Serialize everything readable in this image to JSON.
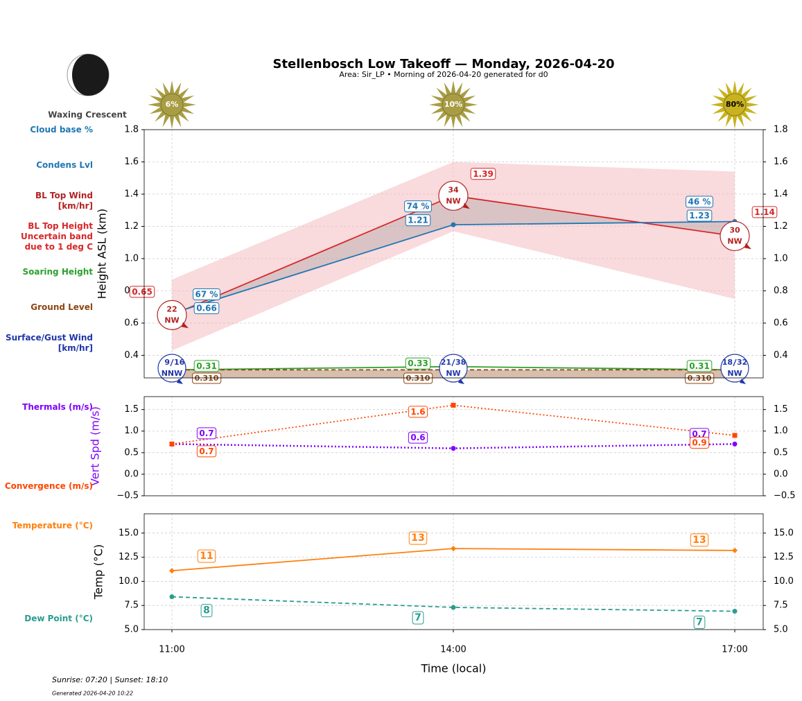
{
  "chart_data": [
    {
      "type": "line",
      "title": "Stellenbosch Low Takeoff — Monday, 2026-04-20",
      "subtitle": "Area: Sir_LP • Morning of 2026-04-20 generated for d0",
      "ylabel": "Height ASL (km)",
      "categories": [
        "11:00",
        "14:00",
        "17:00"
      ],
      "ylim": [
        0.26,
        1.8
      ],
      "yticks": [
        0.4,
        0.6,
        0.8,
        {
          "value": 1,
          "label": "1.0"
        },
        1.2,
        1.4,
        1.6,
        1.8
      ],
      "grid": true,
      "series": [
        {
          "name": "BL Top Height",
          "color": "#d62728",
          "linestyle": "solid",
          "marker": null,
          "values": [
            0.65,
            1.39,
            1.14
          ]
        },
        {
          "name": "Condens Lvl",
          "color": "#1f77b4",
          "linestyle": "solid",
          "marker": "circle",
          "values": [
            0.66,
            1.21,
            1.23
          ]
        },
        {
          "name": "Soaring Height",
          "color": "#2ca02c",
          "linestyle": "solid",
          "marker": null,
          "values": [
            0.31,
            0.33,
            0.31
          ]
        },
        {
          "name": "Ground Level",
          "color": "#8b4513",
          "linestyle": "dashed",
          "marker": null,
          "values": [
            0.31,
            0.31,
            0.31
          ],
          "value_labels": [
            "0.310",
            "0.310",
            "0.310"
          ]
        }
      ],
      "band": {
        "name": "Uncertain band due to 1 deg C",
        "color": "#f4b6bb",
        "lower": [
          0.43,
          1.17,
          0.75
        ],
        "upper": [
          0.87,
          1.6,
          1.54
        ]
      },
      "cloud_base": {
        "name": "Cloud base %",
        "color": "#1f77b4",
        "values": [
          67,
          74,
          46
        ],
        "value_labels": [
          "67 %",
          "74 %",
          "46 %"
        ]
      },
      "bl_top_wind": {
        "name": "BL Top Wind [km/hr]",
        "color": "#b22222",
        "speed": [
          22,
          34,
          30
        ],
        "direction": [
          "NW",
          "NW",
          "NW"
        ]
      },
      "surface_wind": {
        "name": "Surface/Gust Wind [km/hr]",
        "color": "#2036a8",
        "speed": [
          9,
          21,
          18
        ],
        "gust": [
          16,
          38,
          32
        ],
        "direction": [
          "NNW",
          "NW",
          "NW"
        ]
      },
      "sun": {
        "values": [
          6,
          10,
          80
        ],
        "value_labels": [
          "6%",
          "10%",
          "80%"
        ]
      }
    },
    {
      "type": "line",
      "ylabel": "Vert Spd (m/s)",
      "ylabel_color": "#7f00ff",
      "categories": [
        "11:00",
        "14:00",
        "17:00"
      ],
      "ylim": [
        -0.5,
        1.8
      ],
      "yticks": [
        {
          "value": -0.5,
          "label": "−0.5"
        },
        {
          "value": 0,
          "label": "0.0"
        },
        0.5,
        {
          "value": 1,
          "label": "1.0"
        },
        1.5
      ],
      "grid": true,
      "series": [
        {
          "name": "Thermals (m/s)",
          "color": "#7f00ff",
          "linestyle": "dotted",
          "marker": "circle",
          "values": [
            0.7,
            0.6,
            0.7
          ]
        },
        {
          "name": "Convergence (m/s)",
          "color": "#ff4500",
          "linestyle": "dotted",
          "marker": "square",
          "values": [
            0.7,
            1.6,
            0.9
          ]
        }
      ]
    },
    {
      "type": "line",
      "ylabel": "Temp (°C)",
      "xlabel": "Time (local)",
      "categories": [
        "11:00",
        "14:00",
        "17:00"
      ],
      "ylim": [
        5,
        17
      ],
      "yticks": [
        {
          "value": 5,
          "label": "5.0"
        },
        7.5,
        {
          "value": 10,
          "label": "10.0"
        },
        12.5,
        {
          "value": 15,
          "label": "15.0"
        }
      ],
      "grid": true,
      "series": [
        {
          "name": "Temperature (°C)",
          "color": "#ff7f0e",
          "linestyle": "solid",
          "marker": "diamond",
          "values": [
            11.1,
            13.4,
            13.2
          ],
          "value_labels": [
            "11",
            "13",
            "13"
          ]
        },
        {
          "name": "Dew Point (°C)",
          "color": "#2a9d8f",
          "linestyle": "dashed",
          "marker": "circle",
          "values": [
            8.4,
            7.3,
            6.9
          ],
          "value_labels": [
            "8",
            "7",
            "7"
          ]
        }
      ]
    }
  ],
  "moon_phase": "Waxing Crescent",
  "footer": {
    "sun_times": "Sunrise: 07:20 | Sunset: 18:10",
    "generated": "Generated 2026-04-20 10:22"
  }
}
